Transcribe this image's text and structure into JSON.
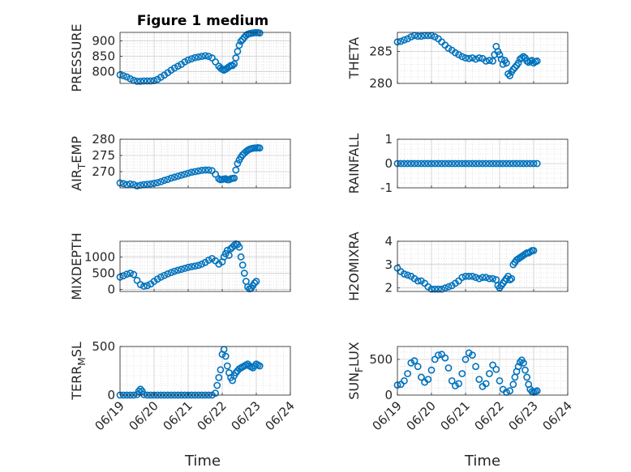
{
  "figure_title": "Figure 1 medium",
  "x_axis_label": "Time",
  "x_tick_labels": [
    "06/19",
    "06/20",
    "06/21",
    "06/22",
    "06/23",
    "06/24"
  ],
  "colors": {
    "marker": "#0072BD",
    "axis": "#262626",
    "grid": "#dcdcdc"
  },
  "chart_data": [
    {
      "type": "scatter",
      "ylabel": "PRESSURE",
      "yticks": [
        800,
        850,
        900
      ],
      "ylim": [
        762,
        928
      ],
      "xlim": [
        0,
        5
      ],
      "grid": true,
      "x": [
        0,
        0.1,
        0.2,
        0.3,
        0.4,
        0.5,
        0.6,
        0.7,
        0.8,
        0.9,
        1,
        1.1,
        1.2,
        1.3,
        1.4,
        1.5,
        1.6,
        1.7,
        1.8,
        1.9,
        2,
        2.1,
        2.2,
        2.3,
        2.4,
        2.5,
        2.6,
        2.7,
        2.8,
        2.9,
        2.95,
        3,
        3.05,
        3.1,
        3.15,
        3.2,
        3.25,
        3.3,
        3.35,
        3.4,
        3.45,
        3.5,
        3.55,
        3.6,
        3.65,
        3.7,
        3.75,
        3.8,
        3.85,
        3.9,
        3.95,
        4,
        4.05,
        4.1
      ],
      "y": [
        790,
        787,
        783,
        777,
        772,
        769,
        769,
        770,
        770,
        770,
        771,
        775,
        782,
        789,
        797,
        805,
        812,
        818,
        824,
        832,
        838,
        842,
        846,
        848,
        850,
        852,
        850,
        845,
        832,
        818,
        812,
        808,
        805,
        808,
        812,
        816,
        820,
        820,
        825,
        845,
        866,
        886,
        899,
        905,
        912,
        918,
        922,
        924,
        925,
        926,
        927,
        927,
        927,
        926
      ]
    },
    {
      "type": "scatter",
      "ylabel": "THETA",
      "yticks": [
        280,
        285
      ],
      "ylim": [
        280,
        288
      ],
      "xlim": [
        0,
        5
      ],
      "grid": true,
      "x": [
        0,
        0.1,
        0.2,
        0.3,
        0.4,
        0.5,
        0.6,
        0.7,
        0.8,
        0.9,
        1,
        1.1,
        1.2,
        1.3,
        1.4,
        1.5,
        1.6,
        1.7,
        1.8,
        1.9,
        2,
        2.1,
        2.2,
        2.3,
        2.4,
        2.5,
        2.6,
        2.7,
        2.8,
        2.85,
        2.9,
        2.95,
        3,
        3.05,
        3.1,
        3.15,
        3.2,
        3.25,
        3.3,
        3.35,
        3.4,
        3.45,
        3.5,
        3.55,
        3.6,
        3.65,
        3.7,
        3.75,
        3.8,
        3.85,
        3.9,
        3.95,
        4,
        4.05,
        4.1
      ],
      "y": [
        286.5,
        286.6,
        286.8,
        287,
        287.3,
        287.5,
        287.4,
        287.4,
        287.5,
        287.5,
        287.5,
        287.3,
        287,
        286.5,
        286,
        285.5,
        285.2,
        284.8,
        284.5,
        284.2,
        284,
        283.9,
        284,
        283.8,
        284,
        283.9,
        283.5,
        283.6,
        283.5,
        284.5,
        285.8,
        285,
        284.5,
        283.8,
        283,
        283.6,
        283.2,
        281.5,
        281.2,
        281.8,
        282.2,
        282.5,
        282.8,
        283.2,
        283.8,
        284,
        284.2,
        284,
        283.5,
        283.3,
        283.5,
        283.6,
        283.2,
        283.4,
        283.5
      ]
    },
    {
      "type": "scatter",
      "ylabel": "AIR_TEMP",
      "yticks": [
        270,
        275,
        280
      ],
      "ylim": [
        265,
        280
      ],
      "xlim": [
        0,
        5
      ],
      "grid": true,
      "x": [
        0,
        0.1,
        0.2,
        0.3,
        0.4,
        0.5,
        0.6,
        0.7,
        0.8,
        0.9,
        1,
        1.1,
        1.2,
        1.3,
        1.4,
        1.5,
        1.6,
        1.7,
        1.8,
        1.9,
        2,
        2.1,
        2.2,
        2.3,
        2.4,
        2.5,
        2.6,
        2.7,
        2.8,
        2.9,
        2.95,
        3,
        3.05,
        3.1,
        3.15,
        3.2,
        3.25,
        3.3,
        3.35,
        3.4,
        3.45,
        3.5,
        3.55,
        3.6,
        3.65,
        3.7,
        3.75,
        3.8,
        3.85,
        3.9,
        3.95,
        4,
        4.05,
        4.1
      ],
      "y": [
        266.5,
        266.3,
        266,
        266.2,
        266,
        265.6,
        265.8,
        266,
        266.1,
        266.2,
        266.4,
        266.6,
        266.9,
        267.3,
        267.6,
        268,
        268.3,
        268.6,
        268.9,
        269.2,
        269.5,
        269.8,
        270,
        270.2,
        270.4,
        270.5,
        270.5,
        270.3,
        269.2,
        267.8,
        267.5,
        267.6,
        267.7,
        267.8,
        267.5,
        267.5,
        267.8,
        267.9,
        268,
        270.5,
        272.5,
        273.6,
        274.5,
        275.2,
        275.7,
        276.2,
        276.6,
        276.9,
        277.1,
        277.2,
        277.3,
        277.3,
        277.4,
        277.3
      ]
    },
    {
      "type": "scatter",
      "ylabel": "RAINFALL",
      "yticks": [
        -1,
        0,
        1
      ],
      "ylim": [
        -1,
        1
      ],
      "xlim": [
        0,
        5
      ],
      "grid": true,
      "x": [
        0,
        0.1,
        0.2,
        0.3,
        0.4,
        0.5,
        0.6,
        0.7,
        0.8,
        0.9,
        1,
        1.1,
        1.2,
        1.3,
        1.4,
        1.5,
        1.6,
        1.7,
        1.8,
        1.9,
        2,
        2.1,
        2.2,
        2.3,
        2.4,
        2.5,
        2.6,
        2.7,
        2.8,
        2.9,
        3,
        3.1,
        3.2,
        3.3,
        3.4,
        3.5,
        3.6,
        3.7,
        3.8,
        3.9,
        4,
        4.1
      ],
      "y": [
        0,
        0,
        0,
        0,
        0,
        0,
        0,
        0,
        0,
        0,
        0,
        0,
        0,
        0,
        0,
        0,
        0,
        0,
        0,
        0,
        0,
        0,
        0,
        0,
        0,
        0,
        0,
        0,
        0,
        0,
        0,
        0,
        0,
        0,
        0,
        0,
        0,
        0,
        0,
        0,
        0,
        0
      ]
    },
    {
      "type": "scatter",
      "ylabel": "MIXDEPTH",
      "yticks": [
        0,
        500,
        1000
      ],
      "ylim": [
        -60,
        1480
      ],
      "xlim": [
        0,
        5
      ],
      "grid": true,
      "x": [
        0,
        0.1,
        0.2,
        0.3,
        0.4,
        0.5,
        0.6,
        0.7,
        0.8,
        0.9,
        1,
        1.1,
        1.2,
        1.3,
        1.4,
        1.5,
        1.6,
        1.7,
        1.8,
        1.9,
        2,
        2.1,
        2.2,
        2.3,
        2.4,
        2.5,
        2.6,
        2.7,
        2.8,
        2.9,
        3,
        3.05,
        3.1,
        3.15,
        3.2,
        3.25,
        3.3,
        3.35,
        3.4,
        3.45,
        3.5,
        3.55,
        3.6,
        3.65,
        3.7,
        3.75,
        3.8,
        3.85,
        3.9,
        3.95,
        4
      ],
      "y": [
        380,
        420,
        470,
        500,
        460,
        280,
        150,
        100,
        120,
        170,
        250,
        320,
        380,
        430,
        480,
        520,
        560,
        590,
        620,
        650,
        680,
        700,
        720,
        740,
        780,
        830,
        900,
        950,
        880,
        780,
        850,
        1000,
        1100,
        1200,
        1050,
        1250,
        1300,
        1350,
        1400,
        1380,
        1300,
        1000,
        750,
        500,
        250,
        80,
        20,
        40,
        120,
        200,
        250
      ]
    },
    {
      "type": "scatter",
      "ylabel": "H2OMIXRA",
      "yticks": [
        2,
        3,
        4
      ],
      "ylim": [
        1.85,
        4
      ],
      "xlim": [
        0,
        5
      ],
      "grid": true,
      "x": [
        0,
        0.1,
        0.2,
        0.3,
        0.4,
        0.5,
        0.6,
        0.7,
        0.8,
        0.9,
        1,
        1.1,
        1.2,
        1.3,
        1.4,
        1.5,
        1.6,
        1.7,
        1.8,
        1.9,
        2,
        2.1,
        2.2,
        2.3,
        2.4,
        2.5,
        2.6,
        2.7,
        2.8,
        2.9,
        2.95,
        3,
        3.05,
        3.1,
        3.15,
        3.2,
        3.25,
        3.3,
        3.35,
        3.4,
        3.45,
        3.5,
        3.55,
        3.6,
        3.65,
        3.7,
        3.75,
        3.8,
        3.85,
        3.9,
        3.95,
        4
      ],
      "y": [
        2.85,
        2.7,
        2.6,
        2.55,
        2.5,
        2.4,
        2.3,
        2.3,
        2.2,
        2.05,
        1.95,
        1.95,
        1.95,
        1.95,
        2,
        2.05,
        2.1,
        2.2,
        2.3,
        2.45,
        2.5,
        2.5,
        2.5,
        2.45,
        2.4,
        2.45,
        2.45,
        2.4,
        2.4,
        2.35,
        2.1,
        2.0,
        2.1,
        2.2,
        2.3,
        2.4,
        2.5,
        2.35,
        2.4,
        3.0,
        3.1,
        3.2,
        3.25,
        3.3,
        3.35,
        3.4,
        3.45,
        3.5,
        3.5,
        3.55,
        3.6,
        3.6
      ]
    },
    {
      "type": "scatter",
      "ylabel": "TERR_MSL",
      "yticks": [
        0,
        500
      ],
      "ylim": [
        0,
        500
      ],
      "xlim": [
        0,
        5
      ],
      "grid": true,
      "x": [
        0,
        0.1,
        0.2,
        0.3,
        0.4,
        0.5,
        0.55,
        0.6,
        0.65,
        0.7,
        0.8,
        0.9,
        1,
        1.1,
        1.2,
        1.3,
        1.4,
        1.5,
        1.6,
        1.7,
        1.8,
        1.9,
        2,
        2.1,
        2.2,
        2.3,
        2.4,
        2.5,
        2.6,
        2.7,
        2.8,
        2.85,
        2.9,
        2.95,
        3,
        3.05,
        3.1,
        3.15,
        3.2,
        3.25,
        3.3,
        3.35,
        3.4,
        3.45,
        3.5,
        3.55,
        3.6,
        3.65,
        3.7,
        3.75,
        3.8,
        3.85,
        3.9,
        3.95,
        4,
        4.05,
        4.1
      ],
      "y": [
        0,
        0,
        0,
        0,
        0,
        5,
        40,
        60,
        40,
        5,
        0,
        0,
        0,
        0,
        0,
        0,
        0,
        0,
        0,
        0,
        0,
        0,
        0,
        0,
        0,
        0,
        0,
        0,
        0,
        0,
        20,
        100,
        180,
        260,
        420,
        470,
        400,
        300,
        230,
        180,
        150,
        200,
        230,
        250,
        270,
        280,
        290,
        300,
        310,
        320,
        300,
        290,
        280,
        300,
        320,
        310,
        300
      ]
    },
    {
      "type": "scatter",
      "ylabel": "SUN_FLUX",
      "yticks": [
        0,
        500
      ],
      "ylim": [
        0,
        680
      ],
      "xlim": [
        0,
        5
      ],
      "grid": true,
      "x": [
        0,
        0.1,
        0.2,
        0.3,
        0.4,
        0.5,
        0.6,
        0.7,
        0.8,
        0.9,
        1,
        1.1,
        1.2,
        1.3,
        1.4,
        1.5,
        1.6,
        1.7,
        1.8,
        1.9,
        2,
        2.1,
        2.2,
        2.3,
        2.4,
        2.5,
        2.6,
        2.7,
        2.8,
        2.9,
        3,
        3.1,
        3.2,
        3.3,
        3.4,
        3.45,
        3.5,
        3.55,
        3.6,
        3.65,
        3.7,
        3.75,
        3.8,
        3.85,
        3.9,
        3.95,
        4,
        4.05,
        4.1
      ],
      "y": [
        140,
        150,
        200,
        300,
        450,
        480,
        400,
        250,
        180,
        220,
        350,
        500,
        560,
        570,
        520,
        380,
        200,
        130,
        160,
        300,
        500,
        590,
        560,
        400,
        220,
        120,
        160,
        300,
        420,
        360,
        200,
        80,
        40,
        60,
        150,
        250,
        330,
        400,
        460,
        490,
        450,
        350,
        250,
        150,
        80,
        50,
        40,
        50,
        60
      ]
    }
  ]
}
